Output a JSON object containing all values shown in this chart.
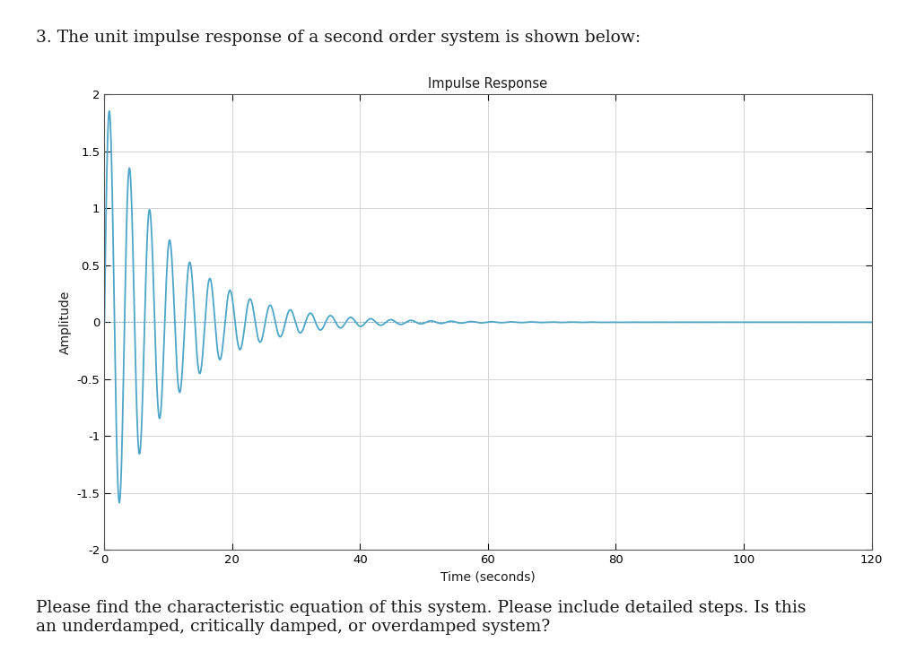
{
  "title": "Impulse Response",
  "xlabel": "Time (seconds)",
  "ylabel": "Amplitude",
  "xlim": [
    0,
    120
  ],
  "ylim": [
    -2,
    2
  ],
  "xticks": [
    0,
    20,
    40,
    60,
    80,
    100,
    120
  ],
  "yticks": [
    -2,
    -1.5,
    -1,
    -0.5,
    0,
    0.5,
    1,
    1.5,
    2
  ],
  "line_color": "#4da6c8",
  "zero_line_color": "#5aa8c8",
  "background_color": "#ffffff",
  "grid_color": "#d3d3d3",
  "title_fontsize": 10.5,
  "label_fontsize": 10,
  "tick_fontsize": 9.5,
  "header_text": "3. The unit impulse response of a second order system is shown below:",
  "footer_text": "Please find the characteristic equation of this system. Please include detailed steps. Is this\nan underdamped, critically damped, or overdamped system?",
  "zeta": 0.05,
  "omega_n": 2.0,
  "figsize": [
    10.12,
    7.26
  ],
  "dpi": 100
}
